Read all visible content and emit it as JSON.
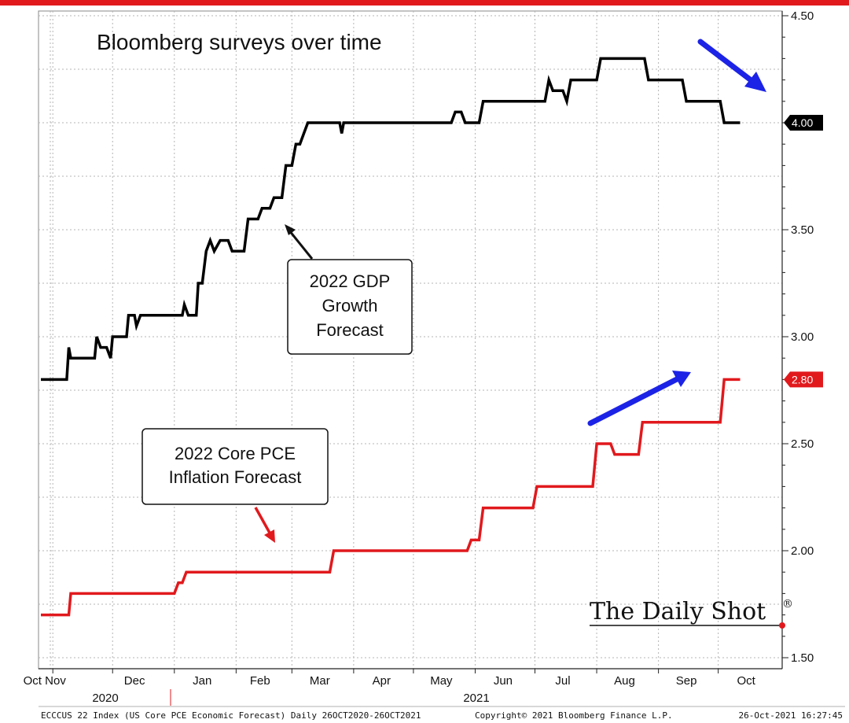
{
  "chart_data": {
    "type": "line",
    "title": "Bloomberg surveys over time",
    "ylim": [
      1.5,
      4.5
    ],
    "y_ticks": [
      "1.50",
      "2.00",
      "2.50",
      "3.00",
      "3.50",
      "4.00",
      "4.50"
    ],
    "x_month_labels": [
      "Oct Nov",
      "Dec",
      "Jan",
      "Feb",
      "Mar",
      "Apr",
      "May",
      "Jun",
      "Jul",
      "Aug",
      "Sep",
      "Oct"
    ],
    "year_labels": [
      "2020",
      "2021"
    ],
    "series": [
      {
        "name": "2022 GDP Growth Forecast",
        "color": "#000000",
        "last_value_label": "4.00",
        "points": [
          [
            "2020-10-26",
            2.8
          ],
          [
            "2020-11-08",
            2.8
          ],
          [
            "2020-11-09",
            2.95
          ],
          [
            "2020-11-10",
            2.9
          ],
          [
            "2020-11-22",
            2.9
          ],
          [
            "2020-11-23",
            3.0
          ],
          [
            "2020-11-25",
            2.95
          ],
          [
            "2020-11-28",
            2.95
          ],
          [
            "2020-11-30",
            2.9
          ],
          [
            "2020-12-01",
            3.0
          ],
          [
            "2020-12-08",
            3.0
          ],
          [
            "2020-12-09",
            3.1
          ],
          [
            "2020-12-12",
            3.1
          ],
          [
            "2020-12-13",
            3.05
          ],
          [
            "2020-12-15",
            3.1
          ],
          [
            "2021-01-05",
            3.1
          ],
          [
            "2021-01-06",
            3.15
          ],
          [
            "2021-01-08",
            3.1
          ],
          [
            "2021-01-12",
            3.1
          ],
          [
            "2021-01-13",
            3.25
          ],
          [
            "2021-01-15",
            3.25
          ],
          [
            "2021-01-17",
            3.4
          ],
          [
            "2021-01-19",
            3.45
          ],
          [
            "2021-01-21",
            3.4
          ],
          [
            "2021-01-24",
            3.45
          ],
          [
            "2021-01-28",
            3.45
          ],
          [
            "2021-01-30",
            3.4
          ],
          [
            "2021-02-05",
            3.4
          ],
          [
            "2021-02-07",
            3.55
          ],
          [
            "2021-02-12",
            3.55
          ],
          [
            "2021-02-14",
            3.6
          ],
          [
            "2021-02-18",
            3.6
          ],
          [
            "2021-02-20",
            3.65
          ],
          [
            "2021-02-24",
            3.65
          ],
          [
            "2021-02-26",
            3.8
          ],
          [
            "2021-03-01",
            3.8
          ],
          [
            "2021-03-03",
            3.9
          ],
          [
            "2021-03-05",
            3.9
          ],
          [
            "2021-03-07",
            3.95
          ],
          [
            "2021-03-09",
            4.0
          ],
          [
            "2021-03-25",
            4.0
          ],
          [
            "2021-03-26",
            3.95
          ],
          [
            "2021-03-27",
            4.0
          ],
          [
            "2021-05-20",
            4.0
          ],
          [
            "2021-05-22",
            4.05
          ],
          [
            "2021-05-25",
            4.05
          ],
          [
            "2021-05-27",
            4.0
          ],
          [
            "2021-06-03",
            4.0
          ],
          [
            "2021-06-05",
            4.1
          ],
          [
            "2021-07-06",
            4.1
          ],
          [
            "2021-07-08",
            4.2
          ],
          [
            "2021-07-10",
            4.15
          ],
          [
            "2021-07-15",
            4.15
          ],
          [
            "2021-07-17",
            4.1
          ],
          [
            "2021-07-19",
            4.2
          ],
          [
            "2021-08-01",
            4.2
          ],
          [
            "2021-08-03",
            4.3
          ],
          [
            "2021-08-25",
            4.3
          ],
          [
            "2021-08-27",
            4.2
          ],
          [
            "2021-09-13",
            4.2
          ],
          [
            "2021-09-15",
            4.1
          ],
          [
            "2021-10-02",
            4.1
          ],
          [
            "2021-10-04",
            4.0
          ],
          [
            "2021-10-12",
            4.0
          ]
        ]
      },
      {
        "name": "2022 Core PCE Inflation Forecast",
        "color": "#e1191d",
        "last_value_label": "2.80",
        "points": [
          [
            "2020-10-26",
            1.7
          ],
          [
            "2020-11-09",
            1.7
          ],
          [
            "2020-11-10",
            1.8
          ],
          [
            "2021-01-01",
            1.8
          ],
          [
            "2021-01-03",
            1.85
          ],
          [
            "2021-01-05",
            1.85
          ],
          [
            "2021-01-07",
            1.9
          ],
          [
            "2021-03-20",
            1.9
          ],
          [
            "2021-03-22",
            2.0
          ],
          [
            "2021-05-28",
            2.0
          ],
          [
            "2021-05-30",
            2.05
          ],
          [
            "2021-06-03",
            2.05
          ],
          [
            "2021-06-05",
            2.2
          ],
          [
            "2021-06-30",
            2.2
          ],
          [
            "2021-07-02",
            2.3
          ],
          [
            "2021-07-30",
            2.3
          ],
          [
            "2021-08-01",
            2.5
          ],
          [
            "2021-08-08",
            2.5
          ],
          [
            "2021-08-10",
            2.45
          ],
          [
            "2021-08-22",
            2.45
          ],
          [
            "2021-08-24",
            2.6
          ],
          [
            "2021-10-02",
            2.6
          ],
          [
            "2021-10-04",
            2.8
          ],
          [
            "2021-10-12",
            2.8
          ]
        ]
      }
    ],
    "annotations": [
      "2022 GDP",
      "Growth",
      "Forecast",
      "2022 Core PCE",
      "Inflation Forecast"
    ]
  },
  "branding": {
    "name": "The Daily Shot",
    "mark": "®"
  },
  "footer": {
    "left": "ECCCUS 22 Index (US Core PCE Economic Forecast) Daily 26OCT2020-26OCT2021",
    "center": "Copyright© 2021 Bloomberg Finance L.P.",
    "right": "26-Oct-2021 16:27:45"
  },
  "colors": {
    "accent_red": "#e1191d",
    "arrow_blue": "#1c23e6"
  }
}
